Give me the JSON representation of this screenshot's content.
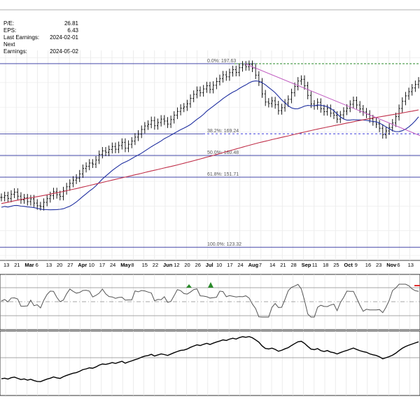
{
  "info": {
    "pe_label": "P/E:",
    "pe_value": "26.81",
    "eps_label": "EPS:",
    "eps_value": "6.43",
    "last_label": "Last Earnings:",
    "last_value": "2024-02-01",
    "next_label": "Next Earnings:",
    "next_value": "2024-05-02"
  },
  "chart_data": [
    {
      "type": "ohlc",
      "title": "",
      "x_tick_labels": [
        "13",
        "21",
        "Mar",
        "6",
        "13",
        "20",
        "27",
        "Apr",
        "10",
        "17",
        "24",
        "May",
        "8",
        "15",
        "22",
        "Jun",
        "12",
        "20",
        "26",
        "Jul",
        "10",
        "17",
        "24",
        "Aug",
        "7",
        "14",
        "21",
        "28",
        "Sep",
        "11",
        "18",
        "25",
        "Oct",
        "9",
        "16",
        "23",
        "Nov",
        "6",
        "13"
      ],
      "x_tick_bold": [
        "Mar",
        "Apr",
        "May",
        "Jun",
        "Jul",
        "Aug",
        "Sep",
        "Oct",
        "Nov"
      ],
      "ylim": [
        118,
        203
      ],
      "close_approx": [
        143.5,
        144.2,
        143.1,
        144.8,
        145.6,
        144.0,
        142.5,
        143.3,
        141.8,
        142.9,
        141.2,
        140.1,
        139.8,
        141.5,
        143.0,
        144.2,
        145.8,
        144.6,
        143.9,
        146.2,
        147.8,
        149.2,
        150.5,
        151.3,
        153.0,
        155.2,
        156.1,
        157.4,
        157.0,
        158.6,
        160.9,
        162.3,
        161.8,
        162.9,
        164.1,
        163.0,
        164.5,
        165.8,
        163.4,
        165.0,
        166.3,
        167.9,
        169.1,
        171.0,
        172.4,
        173.1,
        174.6,
        172.5,
        173.8,
        175.2,
        174.4,
        173.2,
        175.0,
        176.8,
        178.3,
        179.6,
        180.1,
        181.4,
        183.6,
        185.2,
        186.8,
        185.9,
        187.4,
        188.7,
        187.2,
        188.9,
        190.4,
        191.6,
        193.1,
        192.3,
        194.0,
        195.2,
        194.1,
        196.0,
        197.1,
        196.4,
        197.3,
        195.8,
        193.0,
        190.2,
        185.4,
        182.1,
        181.5,
        182.6,
        181.0,
        178.6,
        179.8,
        181.7,
        183.2,
        185.9,
        188.4,
        190.6,
        191.3,
        188.7,
        184.8,
        181.3,
        180.6,
        182.0,
        179.4,
        178.2,
        179.5,
        177.6,
        176.8,
        175.2,
        176.9,
        178.4,
        179.6,
        181.2,
        182.7,
        180.9,
        179.3,
        178.1,
        177.2,
        175.3,
        174.1,
        173.2,
        171.5,
        168.9,
        170.4,
        171.8,
        173.6,
        176.2,
        179.5,
        182.4,
        184.6,
        186.3,
        187.8,
        189.2,
        190.6
      ],
      "overlays": [
        {
          "name": "MA50",
          "color": "#1f2fa0"
        },
        {
          "name": "MA200",
          "color": "#c0304a"
        }
      ],
      "fib_levels": [
        {
          "label": "0.0%: 197.63",
          "value": 197.63
        },
        {
          "label": "38.2%: 169.24",
          "value": 169.24
        },
        {
          "label": "50.0%: 160.48",
          "value": 160.48
        },
        {
          "label": "61.8%: 151.71",
          "value": 151.71
        },
        {
          "label": "100.0%: 123.32",
          "value": 123.32
        }
      ],
      "colors": {
        "fib": "#2a2f9c",
        "trend": "#c05bc0",
        "resistance": "#2a8a2a",
        "support": "#3a3adb",
        "price": "#000000"
      }
    },
    {
      "type": "line",
      "name": "oscillator",
      "series_color": "#555555",
      "marker_colors": [
        "#2a8a2a",
        "#e03030"
      ]
    },
    {
      "type": "line",
      "name": "lower indicator",
      "series_color": "#000000"
    }
  ]
}
